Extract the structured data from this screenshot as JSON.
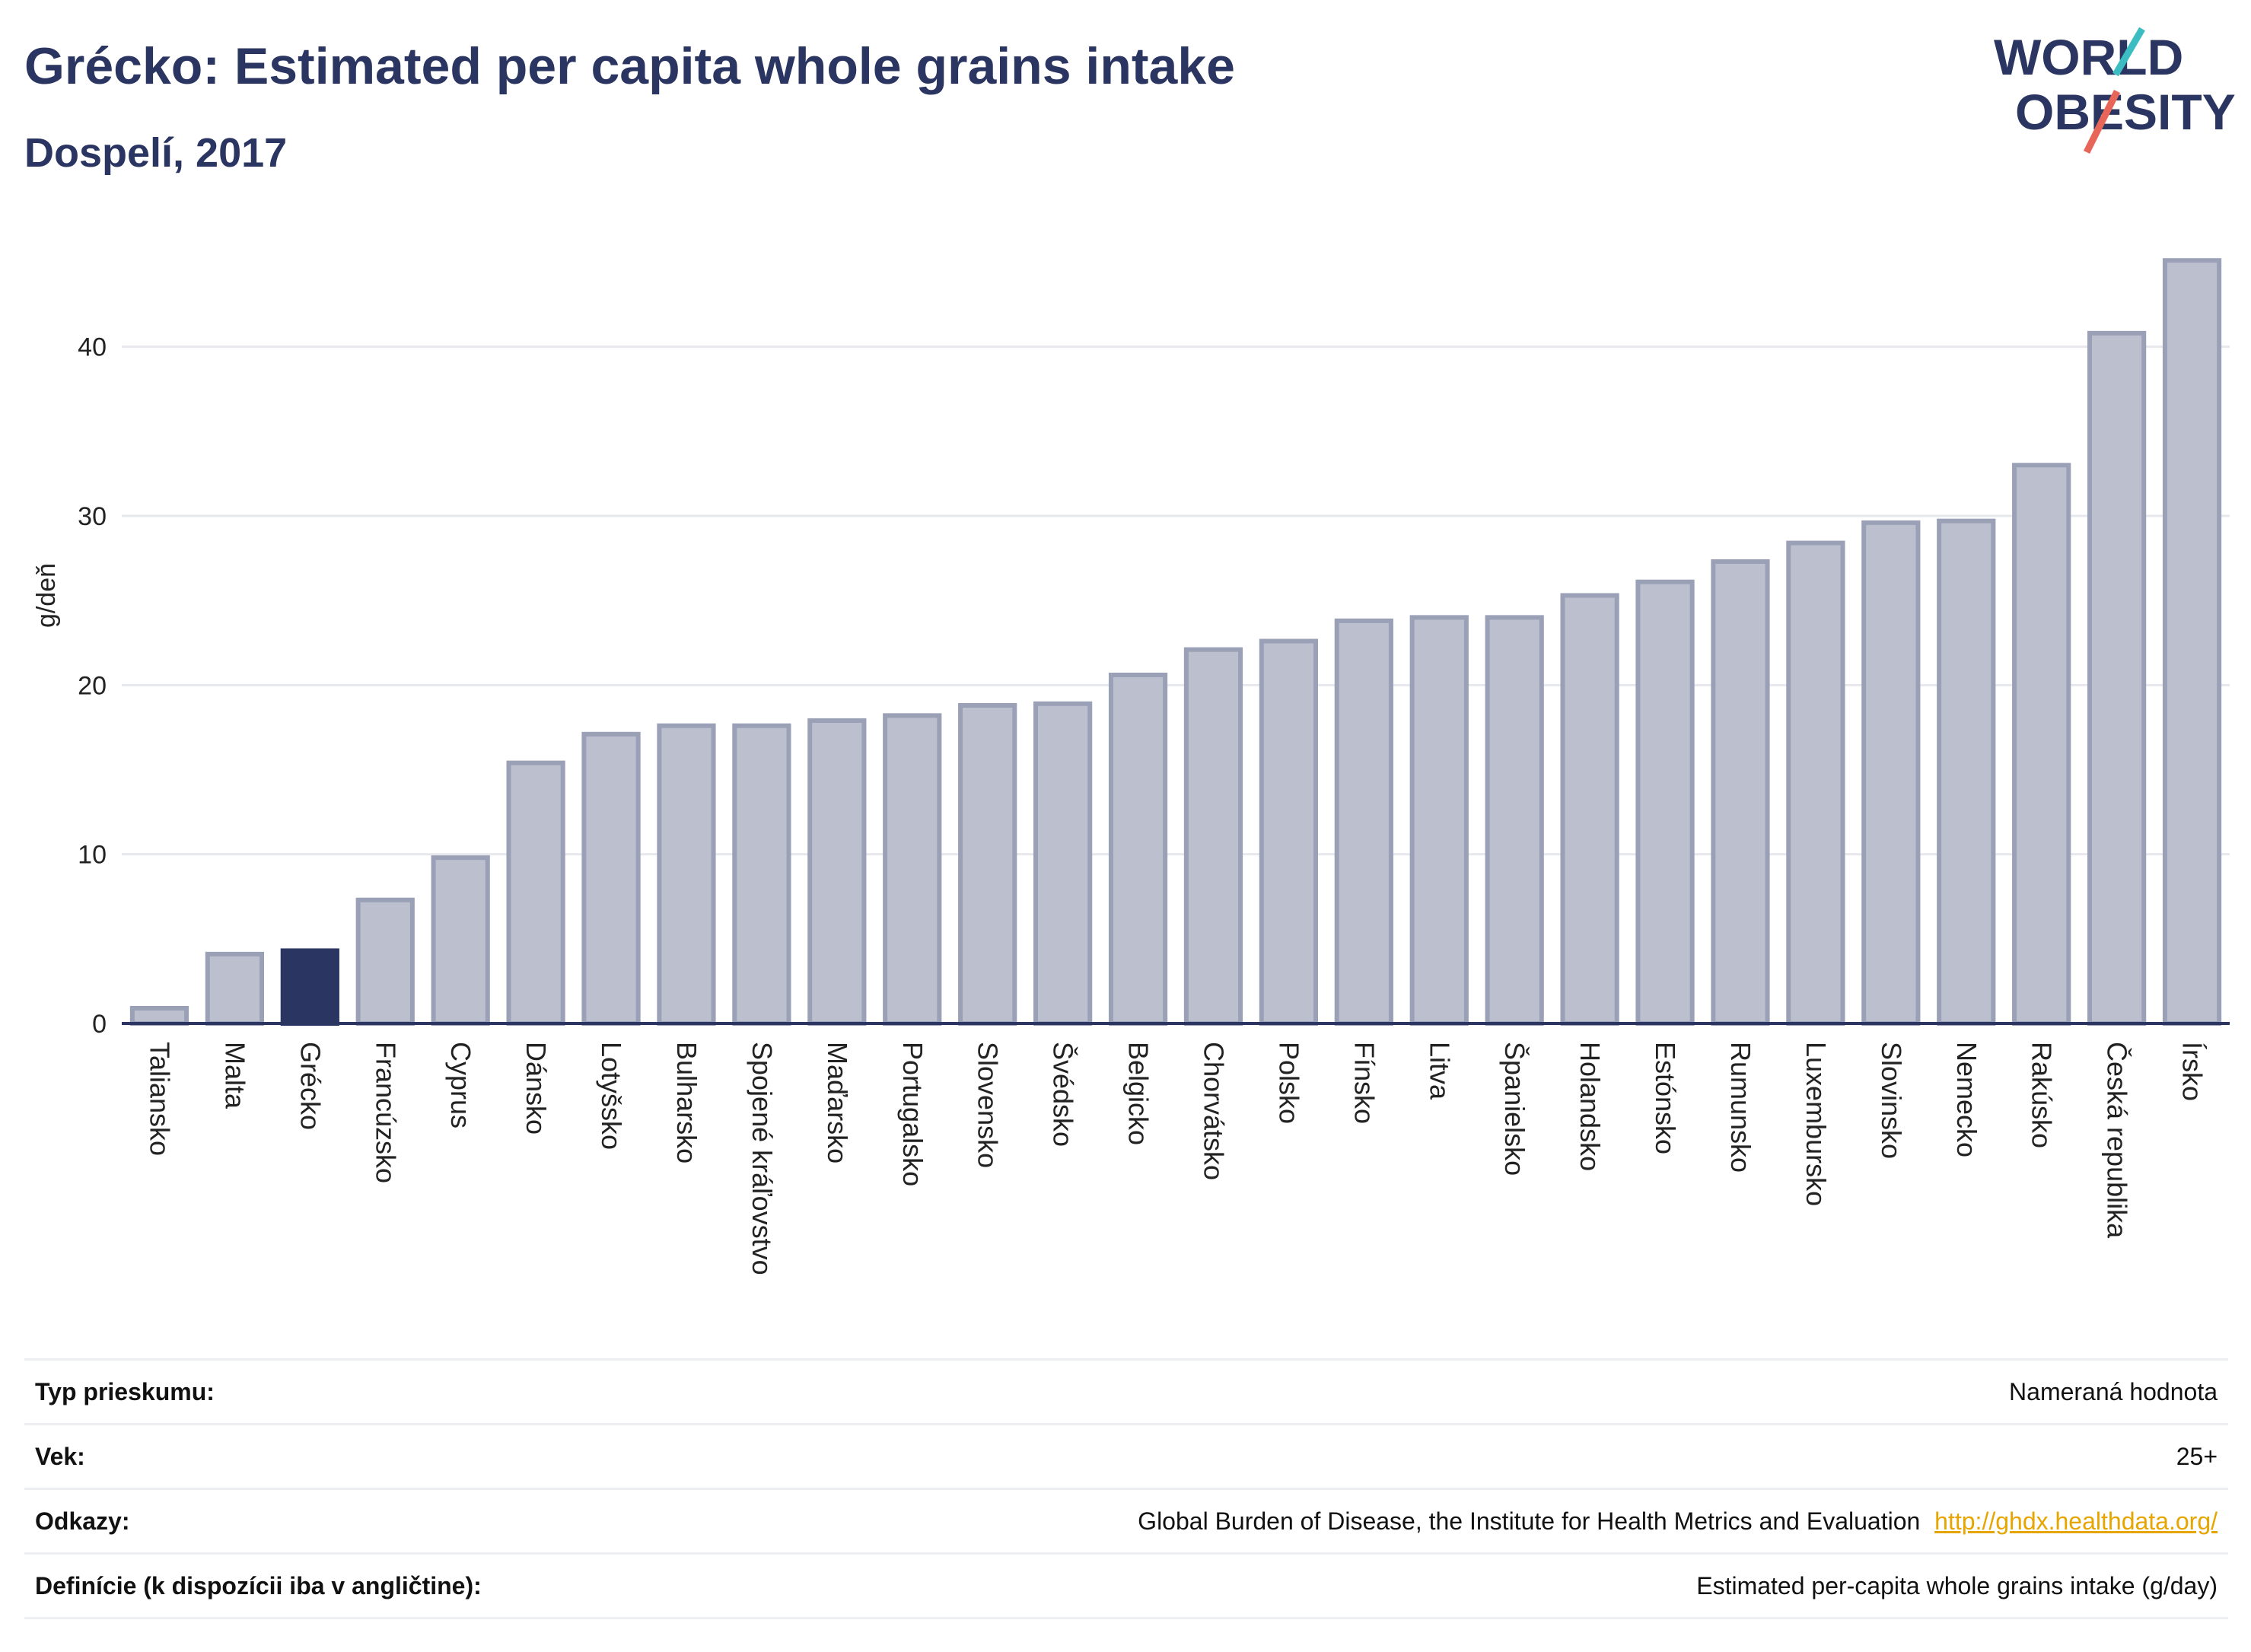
{
  "header": {
    "title": "Grécko: Estimated per capita whole grains intake",
    "subtitle": "Dospelí, 2017"
  },
  "logo": {
    "line1": "WORLD",
    "line2": "OBESITY",
    "colors": {
      "text": "#2b3561",
      "slash_red": "#e8655a",
      "slash_teal": "#3bbdc2"
    }
  },
  "chart_data": {
    "type": "bar",
    "ylabel": "g/deň",
    "ylim": [
      0,
      47
    ],
    "yticks": [
      0,
      10,
      20,
      30,
      40
    ],
    "grid": true,
    "highlight": "Grécko",
    "colors": {
      "bar": "#bcc0ce",
      "bar_edge": "#9aa0b6",
      "highlight": "#2b3561"
    },
    "categories": [
      "Taliansko",
      "Malta",
      "Grécko",
      "Francúzsko",
      "Cyprus",
      "Dánsko",
      "Lotyšsko",
      "Bulharsko",
      "Spojené kráľovstvo",
      "Maďarsko",
      "Portugalsko",
      "Slovensko",
      "Švédsko",
      "Belgicko",
      "Chorvátsko",
      "Polsko",
      "Fínsko",
      "Litva",
      "Španielsko",
      "Holandsko",
      "Estónsko",
      "Rumunsko",
      "Luxembursko",
      "Slovinsko",
      "Nemecko",
      "Rakúsko",
      "Česká republika",
      "Írsko"
    ],
    "values": [
      0.9,
      4.1,
      4.3,
      7.3,
      9.8,
      15.4,
      17.1,
      17.6,
      17.6,
      17.9,
      18.2,
      18.8,
      18.9,
      20.6,
      22.1,
      22.6,
      23.8,
      24.0,
      24.0,
      25.3,
      26.1,
      27.3,
      28.4,
      29.6,
      29.7,
      33.0,
      40.8,
      45.1
    ]
  },
  "info": {
    "rows": [
      {
        "label": "Typ prieskumu:",
        "value": "Nameraná hodnota",
        "link": ""
      },
      {
        "label": "Vek:",
        "value": "25+",
        "link": ""
      },
      {
        "label": "Odkazy:",
        "value": "Global Burden of Disease, the Institute for Health Metrics and Evaluation",
        "link": "http://ghdx.healthdata.org/"
      },
      {
        "label": "Definície (k dispozícii iba v angličtine):",
        "value": "Estimated per-capita whole grains intake (g/day)",
        "link": ""
      }
    ]
  }
}
